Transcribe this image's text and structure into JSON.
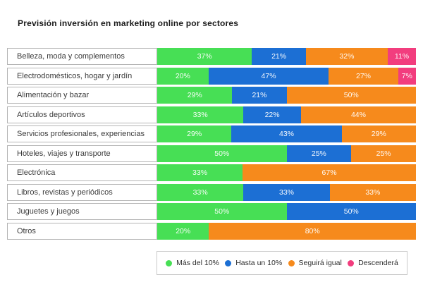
{
  "title": "Previsión inversión en marketing online por sectores",
  "colors": {
    "green": "#47df55",
    "blue": "#1c6fd4",
    "orange": "#f68a1c",
    "pink": "#f23d7e"
  },
  "chart_data": {
    "type": "bar",
    "orientation": "horizontal-stacked",
    "unit": "%",
    "title": "Previsión inversión en marketing online por sectores",
    "grid": false,
    "legend_position": "bottom",
    "value_label_format": "{value}%",
    "categories": [
      "Belleza, moda y complementos",
      "Electrodomésticos, hogar y jardín",
      "Alimentación y bazar",
      "Artículos deportivos",
      "Servicios profesionales, experiencias",
      "Hoteles, viajes y transporte",
      "Electrónica",
      "Libros, revistas y periódicos",
      "Juguetes y juegos",
      "Otros"
    ],
    "series": [
      {
        "name": "Más del 10%",
        "color_key": "green",
        "values": [
          37,
          20,
          29,
          33,
          29,
          50,
          33,
          33,
          50,
          20
        ]
      },
      {
        "name": "Hasta un 10%",
        "color_key": "blue",
        "values": [
          21,
          47,
          21,
          22,
          43,
          25,
          0,
          33,
          50,
          0
        ]
      },
      {
        "name": "Seguirá igual",
        "color_key": "orange",
        "values": [
          32,
          27,
          50,
          44,
          29,
          25,
          67,
          33,
          0,
          80
        ]
      },
      {
        "name": "Descenderá",
        "color_key": "pink",
        "values": [
          11,
          7,
          0,
          0,
          0,
          0,
          0,
          0,
          0,
          0
        ]
      }
    ]
  }
}
